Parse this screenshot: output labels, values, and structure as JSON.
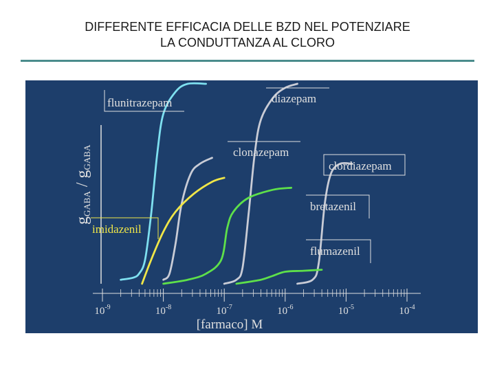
{
  "slide": {
    "title_line1": "DIFFERENTE EFFICACIA DELLE BZD NEL POTENZIARE",
    "title_line2": "LA CONDUTTANZA AL CLORO"
  },
  "colors": {
    "background": "#1d3e6b",
    "axis": "#e0e0e0",
    "accent_rule": "#4a8c8c"
  },
  "chart_data": {
    "type": "line",
    "title": "",
    "xlabel": "[farmaco] M",
    "ylabel": "gGABA / gGABA",
    "x_scale": "log",
    "xlim": [
      1e-09,
      0.0001
    ],
    "x_ticks": [
      {
        "label": "10-9",
        "base": "10",
        "exp": "-9"
      },
      {
        "label": "10-8",
        "base": "10",
        "exp": "-8"
      },
      {
        "label": "10-7",
        "base": "10",
        "exp": "-7"
      },
      {
        "label": "10-6",
        "base": "10",
        "exp": "-6"
      },
      {
        "label": "10-5",
        "base": "10",
        "exp": "-5"
      },
      {
        "label": "10-4",
        "base": "10",
        "exp": "-4"
      }
    ],
    "series": [
      {
        "name": "flunitrazepam",
        "color": "#7ee0f0",
        "points": [
          [
            0.3,
            0.02
          ],
          [
            0.5,
            0.03
          ],
          [
            0.6,
            0.05
          ],
          [
            0.7,
            0.12
          ],
          [
            0.8,
            0.35
          ],
          [
            0.9,
            0.65
          ],
          [
            1.0,
            0.85
          ],
          [
            1.2,
            0.96
          ],
          [
            1.4,
            1.0
          ],
          [
            1.7,
            1.0
          ]
        ]
      },
      {
        "name": "diazepam",
        "color": "#c9ccd6",
        "points": [
          [
            2.0,
            0.0
          ],
          [
            2.2,
            0.02
          ],
          [
            2.3,
            0.08
          ],
          [
            2.4,
            0.35
          ],
          [
            2.5,
            0.65
          ],
          [
            2.6,
            0.82
          ],
          [
            2.8,
            0.93
          ],
          [
            3.0,
            0.98
          ],
          [
            3.2,
            1.0
          ]
        ]
      },
      {
        "name": "clonazepam",
        "color": "#c9ccd6",
        "points": [
          [
            1.0,
            0.02
          ],
          [
            1.1,
            0.05
          ],
          [
            1.2,
            0.2
          ],
          [
            1.3,
            0.4
          ],
          [
            1.45,
            0.55
          ],
          [
            1.6,
            0.6
          ],
          [
            1.8,
            0.63
          ]
        ]
      },
      {
        "name": "clordiazepam",
        "color": "#c9ccd6",
        "points": [
          [
            3.2,
            0.0
          ],
          [
            3.45,
            0.02
          ],
          [
            3.55,
            0.1
          ],
          [
            3.65,
            0.4
          ],
          [
            3.75,
            0.55
          ],
          [
            3.9,
            0.6
          ],
          [
            4.1,
            0.6
          ]
        ]
      },
      {
        "name": "bretazenil",
        "color": "#5ee04a",
        "points": [
          [
            1.0,
            0.0
          ],
          [
            1.4,
            0.02
          ],
          [
            1.7,
            0.05
          ],
          [
            1.95,
            0.12
          ],
          [
            2.05,
            0.28
          ],
          [
            2.15,
            0.36
          ],
          [
            2.4,
            0.43
          ],
          [
            2.8,
            0.47
          ],
          [
            3.1,
            0.48
          ]
        ]
      },
      {
        "name": "flumazenil",
        "color": "#5ee04a",
        "points": [
          [
            2.2,
            0.0
          ],
          [
            2.6,
            0.02
          ],
          [
            2.8,
            0.04
          ],
          [
            3.0,
            0.06
          ],
          [
            3.3,
            0.065
          ],
          [
            3.6,
            0.07
          ]
        ]
      },
      {
        "name": "imidazenil",
        "color": "#f0e648",
        "points": [
          [
            0.65,
            0.0
          ],
          [
            0.8,
            0.12
          ],
          [
            1.0,
            0.26
          ],
          [
            1.2,
            0.36
          ],
          [
            1.5,
            0.45
          ],
          [
            1.8,
            0.51
          ],
          [
            2.0,
            0.53
          ]
        ]
      }
    ]
  }
}
